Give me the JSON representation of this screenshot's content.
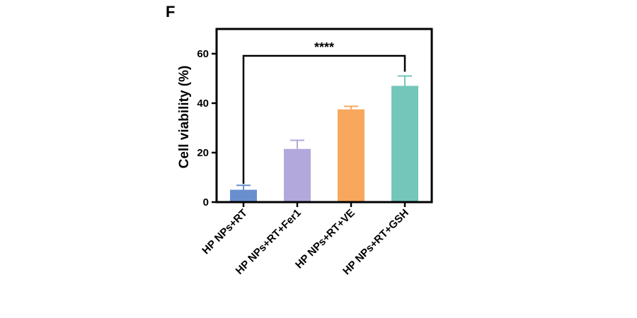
{
  "panel_label": "F",
  "chart_data": {
    "type": "bar",
    "categories": [
      "HP NPs+RT",
      "HP NPs+RT+Fer1",
      "HP NPs+RT+VE",
      "HP NPs+RT+GSH"
    ],
    "values": [
      5,
      21.5,
      37.5,
      47
    ],
    "errors": [
      1.8,
      3.5,
      1.2,
      4
    ],
    "colors": [
      "#6a8fcf",
      "#b3a8dc",
      "#f7a85c",
      "#74c6bb"
    ],
    "ylabel": "Cell viability (%)",
    "xlabel": "",
    "ylim": [
      0,
      70
    ],
    "yticks": [
      0,
      20,
      40,
      60
    ],
    "grid": false,
    "significance": {
      "from": 0,
      "to": 3,
      "label": "****"
    }
  }
}
